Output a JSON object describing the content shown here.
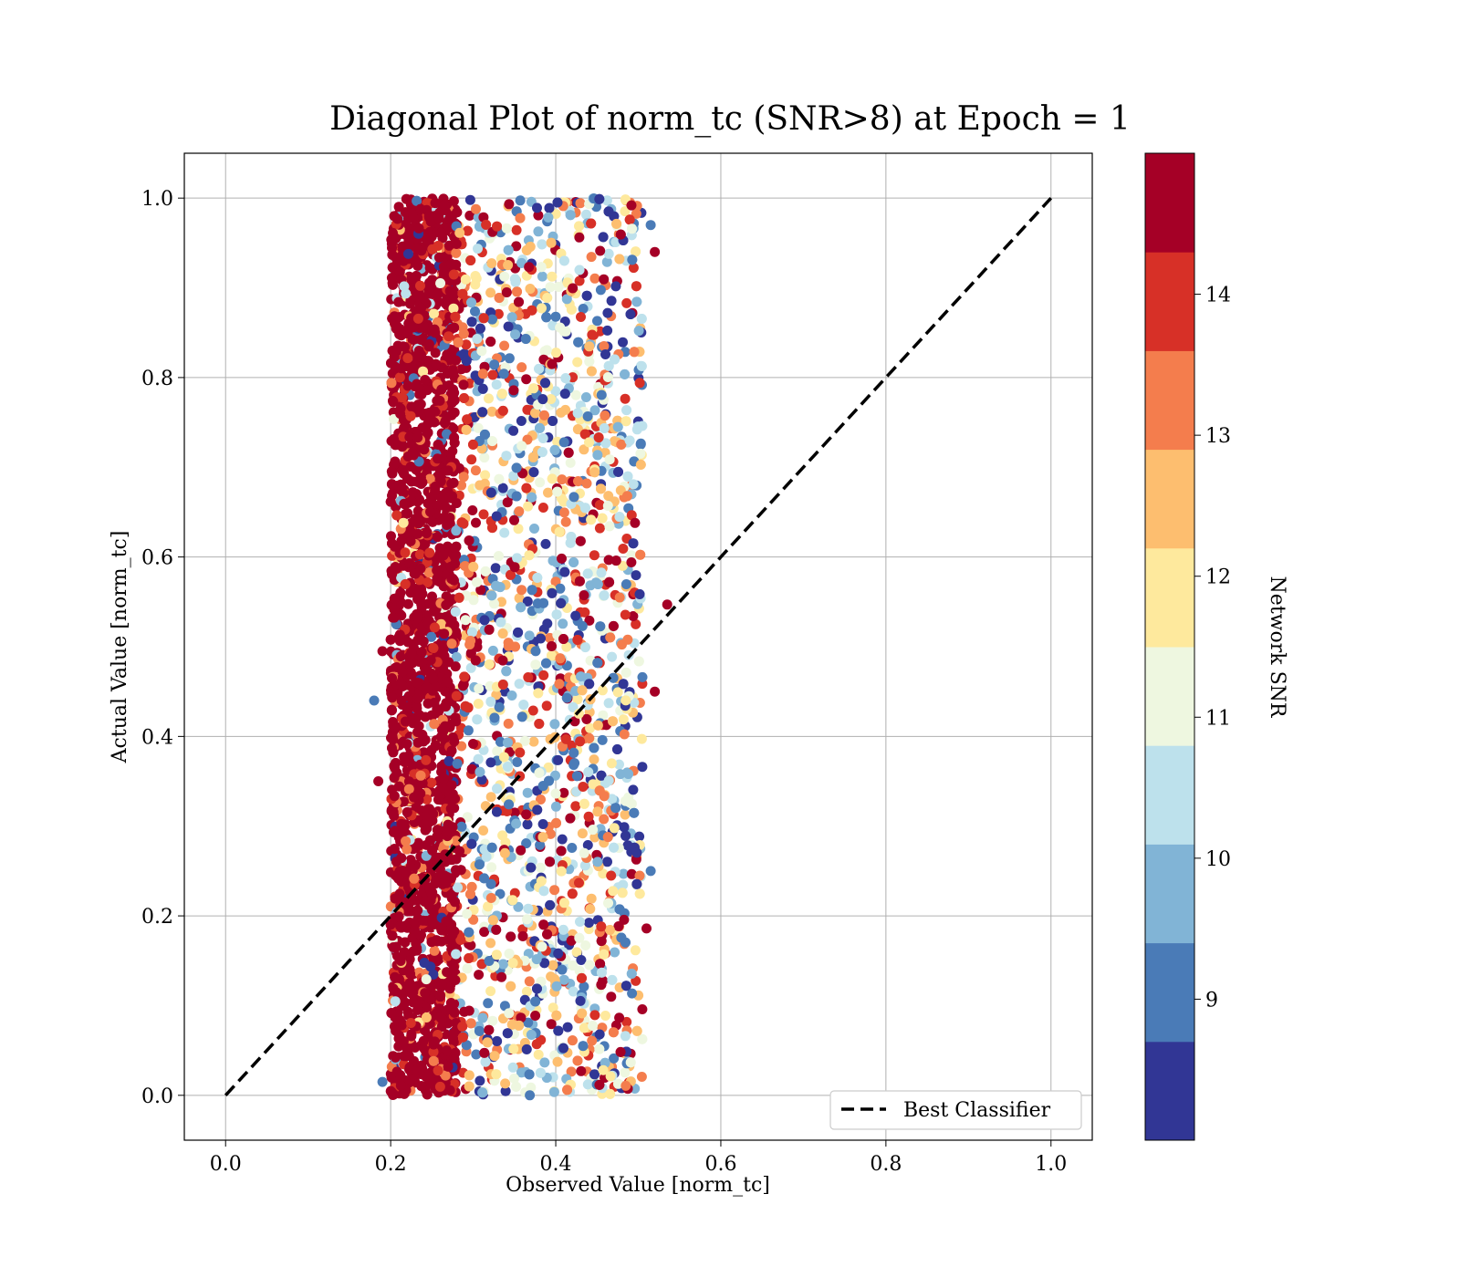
{
  "chart_data": {
    "type": "scatter",
    "title": "Diagonal Plot of norm_tc (SNR>8) at Epoch = 1",
    "xlabel": "Observed Value [norm_tc]",
    "ylabel": "Actual Value [norm_tc]",
    "xlim": [
      -0.05,
      1.05
    ],
    "ylim": [
      -0.05,
      1.05
    ],
    "xticks": [
      "0.0",
      "0.2",
      "0.4",
      "0.6",
      "0.8",
      "1.0"
    ],
    "yticks": [
      "0.0",
      "0.2",
      "0.4",
      "0.6",
      "0.8",
      "1.0"
    ],
    "xtick_values": [
      0.0,
      0.2,
      0.4,
      0.6,
      0.8,
      1.0
    ],
    "ytick_values": [
      0.0,
      0.2,
      0.4,
      0.6,
      0.8,
      1.0
    ],
    "grid": true,
    "reference_line": {
      "name": "Best Classifier",
      "x": [
        0.0,
        1.0
      ],
      "y": [
        0.0,
        1.0
      ],
      "style": "dashed",
      "color": "#000000"
    },
    "legend": {
      "position": "lower-right",
      "entries": [
        "Best Classifier"
      ]
    },
    "scatter_summary": {
      "x_range": [
        0.17,
        0.53
      ],
      "y_range": [
        0.0,
        1.0
      ],
      "dense_high_snr_x_range": [
        0.2,
        0.28
      ],
      "color_by": "Network SNR"
    },
    "colorbar": {
      "label": "Network SNR",
      "range": [
        8.0,
        15.0
      ],
      "ticks": [
        "9",
        "10",
        "11",
        "12",
        "13",
        "14"
      ],
      "tick_values": [
        9,
        10,
        11,
        12,
        13,
        14
      ],
      "bins": [
        {
          "from": 8.0,
          "to": 8.7,
          "color": "#313695"
        },
        {
          "from": 8.7,
          "to": 9.4,
          "color": "#4a7bb7"
        },
        {
          "from": 9.4,
          "to": 10.1,
          "color": "#81b4d6"
        },
        {
          "from": 10.1,
          "to": 10.8,
          "color": "#bde1ec"
        },
        {
          "from": 10.8,
          "to": 11.5,
          "color": "#eef7e0"
        },
        {
          "from": 11.5,
          "to": 12.2,
          "color": "#fee99d"
        },
        {
          "from": 12.2,
          "to": 12.9,
          "color": "#fdbe6f"
        },
        {
          "from": 12.9,
          "to": 13.6,
          "color": "#f47d4d"
        },
        {
          "from": 13.6,
          "to": 14.3,
          "color": "#d73027"
        },
        {
          "from": 14.3,
          "to": 15.0,
          "color": "#a50026"
        }
      ]
    }
  }
}
